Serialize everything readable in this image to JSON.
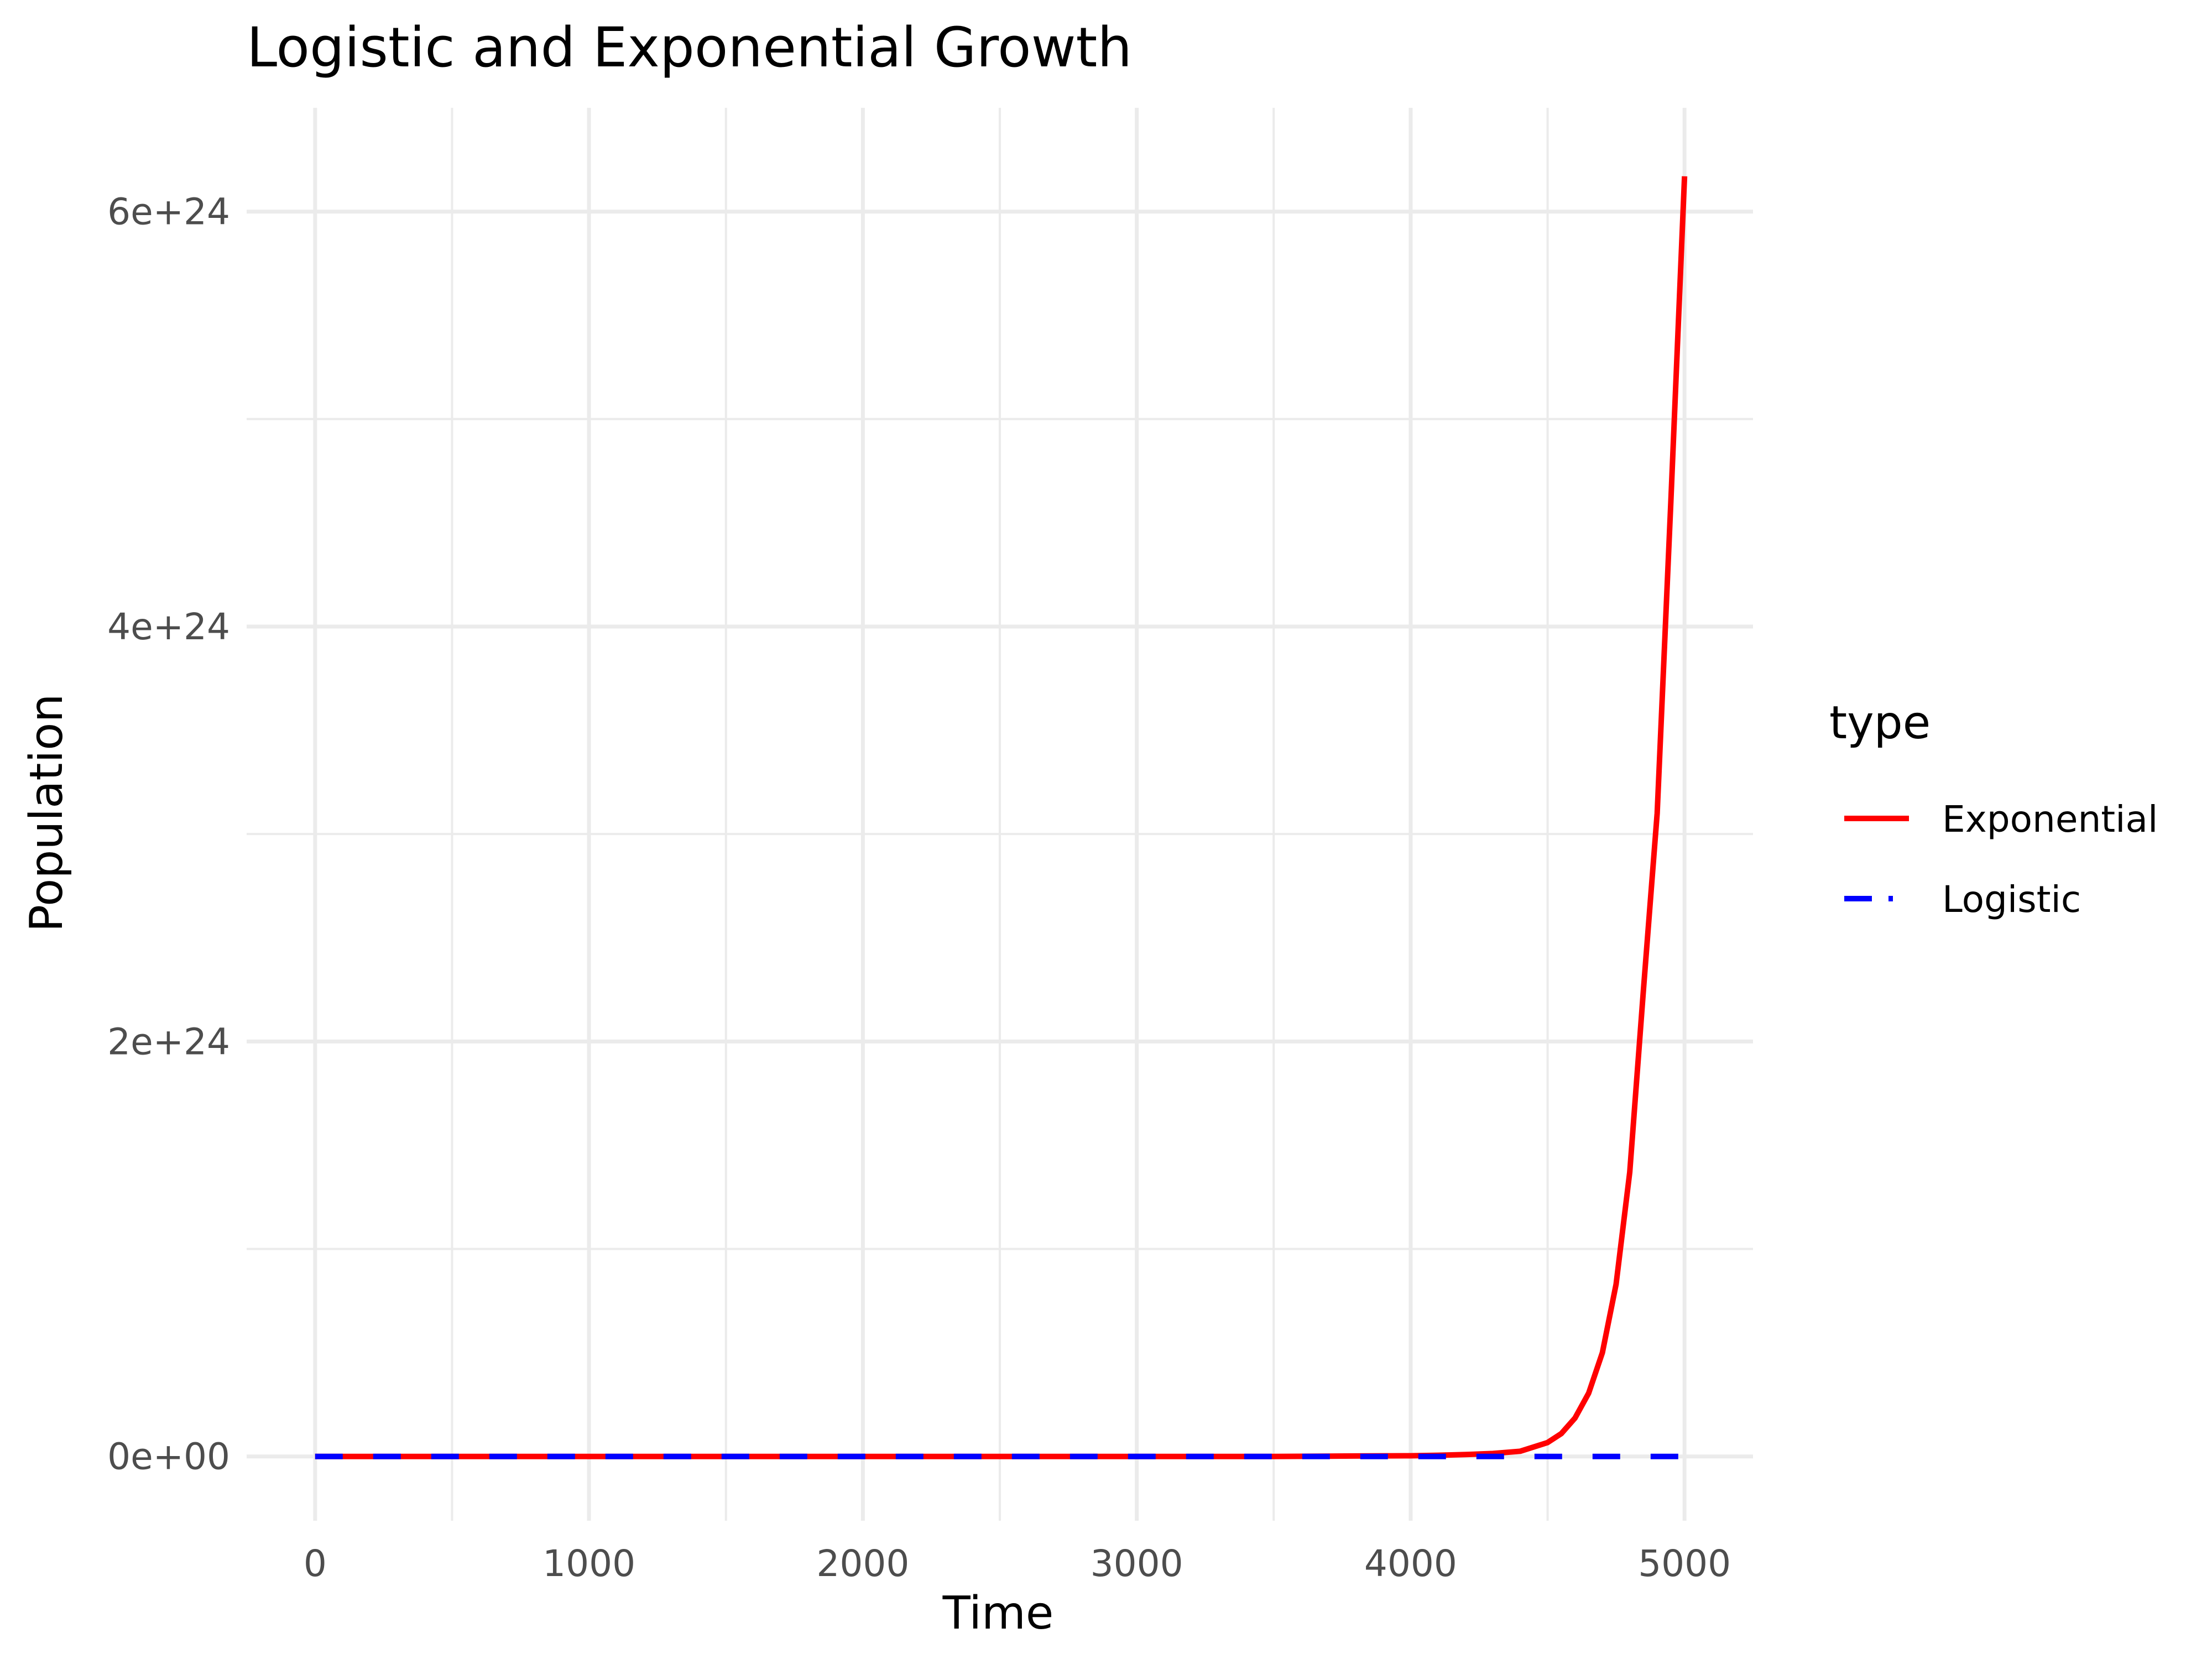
{
  "chart_data": {
    "type": "line",
    "title": "Logistic and Exponential Growth",
    "xlabel": "Time",
    "ylabel": "Population",
    "xlim": [
      -250,
      5250
    ],
    "ylim": [
      -3.1e+23,
      6.5e+24
    ],
    "x_ticks": [
      0,
      1000,
      2000,
      3000,
      4000,
      5000
    ],
    "x_tick_labels": [
      "0",
      "1000",
      "2000",
      "3000",
      "4000",
      "5000"
    ],
    "y_ticks": [
      0,
      2e+24,
      4e+24,
      6e+24
    ],
    "y_tick_labels": [
      "0e+00",
      "2e+24",
      "4e+24",
      "6e+24"
    ],
    "grid": true,
    "legend": {
      "title": "type",
      "position": "right"
    },
    "series": [
      {
        "name": "Exponential",
        "color": "#ff0000",
        "linetype": "solid",
        "x": [
          0,
          500,
          1000,
          1500,
          2000,
          2500,
          3000,
          3500,
          3800,
          4000,
          4100,
          4200,
          4300,
          4400,
          4500,
          4550,
          4600,
          4650,
          4700,
          4750,
          4800,
          4850,
          4900,
          4950,
          5000
        ],
        "y": [
          1,
          860.0,
          740000.0,
          630000000.0,
          55000000000.0,
          47000000000000.0,
          4e+16,
          3.5e+19,
          2.1e+21,
          3.3e+21,
          5.5e+21,
          9e+21,
          1.4e+22,
          2.5e+22,
          6.7e+22,
          1.1e+23,
          1.85e+23,
          3.05e+23,
          5e+23,
          8.3e+23,
          1.37e+24,
          2.25e+24,
          3.1e+24,
          4.6e+24,
          6.17e+24
        ]
      },
      {
        "name": "Logistic",
        "color": "#0000ff",
        "linetype": "dashed",
        "x": [
          0,
          5000
        ],
        "y": [
          0,
          0
        ]
      }
    ]
  }
}
